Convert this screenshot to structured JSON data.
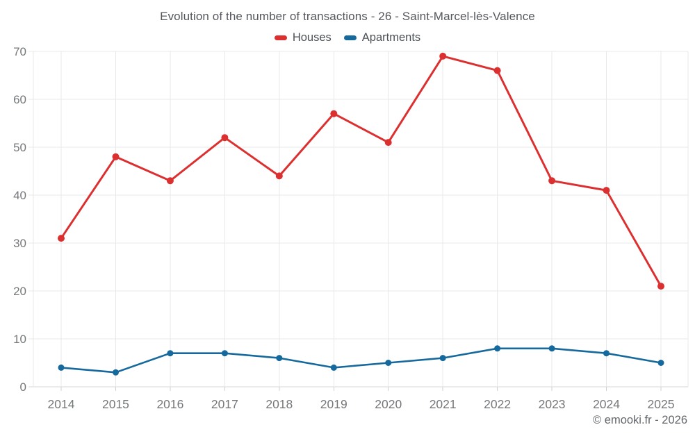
{
  "title": "Evolution of the number of transactions - 26 - Saint-Marcel-lès-Valence",
  "footer": {
    "copyright": "© emooki.fr - 2026"
  },
  "colors": {
    "houses": "#dc3030",
    "apartments": "#16699c",
    "grid": "#e8e8e8",
    "axis_line": "#d6d6d6",
    "tick": "#d0d0d0",
    "axis_text": "#75787b",
    "title_text": "#54575c",
    "legend_text": "#4c5156",
    "footer_text": "#63676b"
  },
  "chart_data": {
    "type": "line",
    "title": "Evolution of the number of transactions - 26 - Saint-Marcel-lès-Valence",
    "categories": [
      "2014",
      "2015",
      "2016",
      "2017",
      "2018",
      "2019",
      "2020",
      "2021",
      "2022",
      "2023",
      "2024",
      "2025"
    ],
    "series": [
      {
        "name": "Houses",
        "color": "#dc3030",
        "values": [
          31,
          48,
          43,
          52,
          44,
          57,
          51,
          69,
          66,
          43,
          41,
          21
        ]
      },
      {
        "name": "Apartments",
        "color": "#16699c",
        "values": [
          4,
          3,
          7,
          7,
          6,
          4,
          5,
          6,
          8,
          8,
          7,
          5
        ]
      }
    ],
    "xlabel": "",
    "ylabel": "",
    "ylim": [
      0,
      70
    ],
    "yticks": [
      0,
      10,
      20,
      30,
      40,
      50,
      60,
      70
    ],
    "grid": true,
    "legend_position": "top"
  }
}
